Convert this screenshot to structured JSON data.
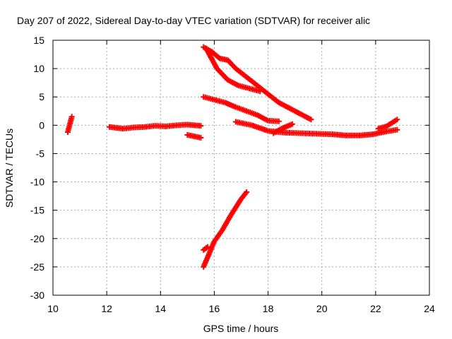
{
  "chart_data": {
    "type": "scatter",
    "title": "Day 207 of 2022, Sidereal Day-to-day VTEC variation (SDTVAR) for receiver alic",
    "xlabel": "GPS time / hours",
    "ylabel": "SDTVAR / TECUs",
    "xlim": [
      10,
      24
    ],
    "ylim": [
      -30,
      15
    ],
    "xticks": [
      "10",
      "12",
      "14",
      "16",
      "18",
      "20",
      "22",
      "24"
    ],
    "yticks": [
      "15",
      "10",
      "5",
      "0",
      "-5",
      "-10",
      "-15",
      "-20",
      "-25",
      "-30"
    ],
    "grid": true,
    "legend": "none",
    "series_color": "#ff0000",
    "series": [
      {
        "x": [
          10.55,
          10.7
        ],
        "y": [
          -1.2,
          1.5
        ]
      },
      {
        "x": [
          12.1,
          12.6,
          13.0,
          13.4,
          13.8,
          14.2,
          14.6,
          15.0,
          15.5
        ],
        "y": [
          -0.3,
          -0.6,
          -0.4,
          -0.3,
          -0.1,
          -0.2,
          0.0,
          0.1,
          -0.1
        ]
      },
      {
        "x": [
          15.0,
          15.5
        ],
        "y": [
          -1.7,
          -2.2
        ]
      },
      {
        "x": [
          15.6,
          16.0,
          16.3,
          16.6,
          16.8,
          17.0,
          17.2
        ],
        "y": [
          -25.0,
          -20.5,
          -18.5,
          -16.0,
          -14.5,
          -13.0,
          -11.8
        ]
      },
      {
        "x": [
          15.6,
          15.75
        ],
        "y": [
          -22.0,
          -21.5
        ]
      },
      {
        "x": [
          15.6,
          15.9,
          16.2,
          16.5,
          16.8,
          17.2,
          17.6,
          18.0,
          18.4,
          18.8,
          19.2,
          19.6
        ],
        "y": [
          13.8,
          13.0,
          11.8,
          11.5,
          10.0,
          8.5,
          7.0,
          5.5,
          4.0,
          3.0,
          2.0,
          1.0
        ]
      },
      {
        "x": [
          15.7,
          16.1,
          16.5,
          16.9,
          17.3,
          17.7
        ],
        "y": [
          13.5,
          10.0,
          8.0,
          7.0,
          6.5,
          6.0
        ]
      },
      {
        "x": [
          15.6,
          16.0,
          16.4,
          16.8,
          17.2,
          17.6,
          18.0,
          18.4
        ],
        "y": [
          5.0,
          4.5,
          4.0,
          3.2,
          2.5,
          1.8,
          0.8,
          0.7
        ]
      },
      {
        "x": [
          16.8,
          17.4,
          18.0,
          18.6,
          19.2,
          19.8,
          20.4,
          20.9,
          21.4,
          21.9,
          22.4,
          22.8
        ],
        "y": [
          0.6,
          0.0,
          -1.0,
          -1.3,
          -1.4,
          -1.5,
          -1.6,
          -1.8,
          -1.8,
          -1.6,
          -1.1,
          -0.8
        ]
      },
      {
        "x": [
          18.2,
          18.5,
          18.9
        ],
        "y": [
          -1.4,
          -0.6,
          0.2
        ]
      },
      {
        "x": [
          22.1,
          22.4,
          22.8
        ],
        "y": [
          -0.6,
          -0.2,
          1.0
        ]
      }
    ]
  }
}
